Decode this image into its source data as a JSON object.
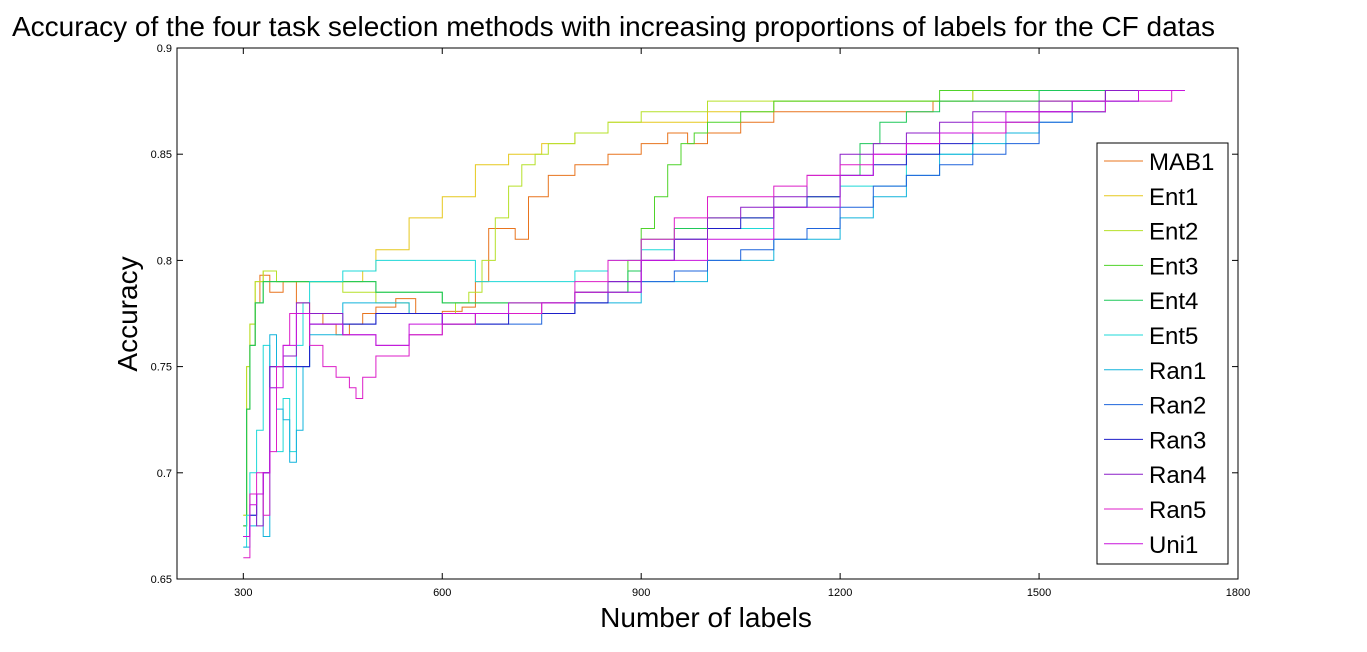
{
  "chart_data": {
    "type": "line",
    "title": "Accuracy of the four task selection methods with increasing proportions of labels for the CF datas",
    "xlabel": "Number of labels",
    "ylabel": "Accuracy",
    "xlim": [
      200,
      1800
    ],
    "ylim": [
      0.65,
      0.9
    ],
    "xticks": [
      300,
      600,
      900,
      1200,
      1500,
      1800
    ],
    "xtick_labels": [
      "300",
      "600",
      "900",
      "1200",
      "1500",
      "1800"
    ],
    "yticks": [
      0.65,
      0.7,
      0.75,
      0.8,
      0.85,
      0.9
    ],
    "ytick_labels": [
      "0.65",
      "0.7",
      "0.75",
      "0.8",
      "0.85",
      "0.9"
    ],
    "grid": false,
    "legend_position": "right",
    "series": [
      {
        "name": "MAB1",
        "color": "#e8741e",
        "x": [
          300,
          305,
          310,
          318,
          325,
          340,
          360,
          380,
          400,
          420,
          440,
          460,
          480,
          500,
          530,
          560,
          600,
          630,
          650,
          670,
          690,
          710,
          730,
          760,
          800,
          850,
          900,
          940,
          970,
          1000,
          1050,
          1100,
          1200,
          1300,
          1340,
          1400,
          1500,
          1600,
          1650
        ],
        "y": [
          0.675,
          0.73,
          0.76,
          0.78,
          0.793,
          0.785,
          0.79,
          0.78,
          0.775,
          0.77,
          0.765,
          0.77,
          0.775,
          0.778,
          0.782,
          0.775,
          0.776,
          0.778,
          0.79,
          0.815,
          0.815,
          0.81,
          0.83,
          0.84,
          0.845,
          0.85,
          0.855,
          0.86,
          0.855,
          0.86,
          0.865,
          0.87,
          0.87,
          0.87,
          0.875,
          0.875,
          0.875,
          0.88,
          0.88
        ]
      },
      {
        "name": "Ent1",
        "color": "#e6c81e",
        "x": [
          300,
          305,
          310,
          318,
          330,
          350,
          400,
          450,
          480,
          500,
          550,
          600,
          650,
          700,
          750,
          800,
          850,
          900,
          950,
          1000,
          1100,
          1200,
          1300,
          1400,
          1500,
          1600
        ],
        "y": [
          0.68,
          0.75,
          0.77,
          0.79,
          0.795,
          0.79,
          0.79,
          0.79,
          0.795,
          0.805,
          0.82,
          0.83,
          0.845,
          0.85,
          0.855,
          0.86,
          0.865,
          0.865,
          0.865,
          0.87,
          0.875,
          0.875,
          0.875,
          0.88,
          0.88,
          0.88
        ]
      },
      {
        "name": "Ent2",
        "color": "#b6e02a",
        "x": [
          300,
          305,
          310,
          318,
          330,
          350,
          400,
          450,
          500,
          550,
          600,
          620,
          640,
          660,
          680,
          700,
          720,
          740,
          760,
          800,
          850,
          900,
          950,
          1000,
          1100,
          1200,
          1300,
          1400,
          1500,
          1600
        ],
        "y": [
          0.68,
          0.75,
          0.77,
          0.79,
          0.795,
          0.79,
          0.79,
          0.785,
          0.78,
          0.775,
          0.775,
          0.78,
          0.785,
          0.8,
          0.82,
          0.835,
          0.845,
          0.85,
          0.855,
          0.86,
          0.865,
          0.87,
          0.87,
          0.875,
          0.875,
          0.875,
          0.875,
          0.88,
          0.88,
          0.88
        ]
      },
      {
        "name": "Ent3",
        "color": "#4fd32a",
        "x": [
          300,
          305,
          310,
          318,
          330,
          400,
          500,
          600,
          700,
          800,
          880,
          900,
          920,
          940,
          960,
          980,
          1000,
          1050,
          1100,
          1200,
          1250,
          1300,
          1350,
          1400,
          1500,
          1600
        ],
        "y": [
          0.675,
          0.73,
          0.76,
          0.78,
          0.79,
          0.79,
          0.785,
          0.78,
          0.78,
          0.785,
          0.8,
          0.815,
          0.83,
          0.845,
          0.855,
          0.86,
          0.865,
          0.87,
          0.875,
          0.875,
          0.875,
          0.875,
          0.88,
          0.88,
          0.88,
          0.88
        ]
      },
      {
        "name": "Ent4",
        "color": "#1ec85a",
        "x": [
          300,
          305,
          310,
          318,
          330,
          400,
          500,
          600,
          700,
          800,
          880,
          900,
          950,
          1000,
          1100,
          1150,
          1200,
          1230,
          1260,
          1300,
          1350,
          1400,
          1500,
          1600
        ],
        "y": [
          0.675,
          0.73,
          0.76,
          0.78,
          0.79,
          0.79,
          0.785,
          0.78,
          0.78,
          0.785,
          0.795,
          0.81,
          0.815,
          0.82,
          0.825,
          0.83,
          0.84,
          0.855,
          0.865,
          0.87,
          0.875,
          0.875,
          0.88,
          0.88
        ]
      },
      {
        "name": "Ent5",
        "color": "#1ed8d8",
        "x": [
          300,
          305,
          310,
          320,
          330,
          340,
          350,
          360,
          370,
          380,
          390,
          400,
          450,
          500,
          550,
          600,
          650,
          700,
          800,
          850,
          900,
          950,
          1000,
          1100,
          1200,
          1300,
          1400,
          1500,
          1600,
          1650
        ],
        "y": [
          0.665,
          0.68,
          0.7,
          0.72,
          0.76,
          0.74,
          0.71,
          0.735,
          0.71,
          0.76,
          0.78,
          0.79,
          0.795,
          0.8,
          0.8,
          0.8,
          0.79,
          0.79,
          0.795,
          0.8,
          0.805,
          0.81,
          0.815,
          0.825,
          0.835,
          0.85,
          0.86,
          0.87,
          0.875,
          0.88
        ]
      },
      {
        "name": "Ran1",
        "color": "#12b4dc",
        "x": [
          300,
          310,
          320,
          330,
          340,
          350,
          360,
          370,
          380,
          390,
          400,
          450,
          500,
          550,
          600,
          650,
          700,
          800,
          900,
          1000,
          1100,
          1200,
          1250,
          1300,
          1350,
          1400,
          1450,
          1500,
          1550,
          1600,
          1650
        ],
        "y": [
          0.665,
          0.675,
          0.69,
          0.67,
          0.765,
          0.73,
          0.725,
          0.705,
          0.72,
          0.75,
          0.765,
          0.78,
          0.78,
          0.775,
          0.77,
          0.775,
          0.775,
          0.78,
          0.79,
          0.8,
          0.81,
          0.82,
          0.83,
          0.84,
          0.85,
          0.855,
          0.86,
          0.865,
          0.87,
          0.875,
          0.88
        ]
      },
      {
        "name": "Ran2",
        "color": "#1e64dc",
        "x": [
          300,
          310,
          320,
          330,
          340,
          400,
          500,
          600,
          700,
          750,
          800,
          850,
          900,
          950,
          1000,
          1050,
          1100,
          1150,
          1200,
          1250,
          1300,
          1350,
          1400,
          1450,
          1500,
          1550,
          1600,
          1650
        ],
        "y": [
          0.67,
          0.68,
          0.69,
          0.7,
          0.75,
          0.77,
          0.775,
          0.77,
          0.77,
          0.775,
          0.78,
          0.785,
          0.79,
          0.795,
          0.8,
          0.805,
          0.81,
          0.815,
          0.825,
          0.835,
          0.84,
          0.845,
          0.85,
          0.855,
          0.865,
          0.87,
          0.875,
          0.88
        ]
      },
      {
        "name": "Ran3",
        "color": "#1e1ec8",
        "x": [
          300,
          310,
          320,
          330,
          340,
          400,
          500,
          600,
          700,
          800,
          850,
          900,
          950,
          1000,
          1050,
          1100,
          1150,
          1200,
          1250,
          1300,
          1350,
          1400,
          1450,
          1500,
          1550,
          1600,
          1650
        ],
        "y": [
          0.67,
          0.68,
          0.69,
          0.7,
          0.75,
          0.77,
          0.775,
          0.77,
          0.775,
          0.78,
          0.79,
          0.8,
          0.81,
          0.815,
          0.82,
          0.825,
          0.83,
          0.84,
          0.845,
          0.85,
          0.855,
          0.86,
          0.865,
          0.87,
          0.875,
          0.88,
          0.88
        ]
      },
      {
        "name": "Ran4",
        "color": "#8c1ec8",
        "x": [
          300,
          310,
          320,
          330,
          340,
          360,
          380,
          400,
          450,
          500,
          550,
          600,
          650,
          700,
          750,
          800,
          850,
          900,
          950,
          1000,
          1050,
          1100,
          1150,
          1200,
          1250,
          1300,
          1350,
          1400,
          1450,
          1500,
          1550,
          1600,
          1650
        ],
        "y": [
          0.67,
          0.69,
          0.675,
          0.7,
          0.75,
          0.755,
          0.78,
          0.775,
          0.765,
          0.76,
          0.765,
          0.77,
          0.775,
          0.775,
          0.78,
          0.785,
          0.79,
          0.8,
          0.81,
          0.82,
          0.825,
          0.83,
          0.84,
          0.85,
          0.855,
          0.86,
          0.865,
          0.87,
          0.87,
          0.875,
          0.875,
          0.88,
          0.88
        ]
      },
      {
        "name": "Ran5",
        "color": "#dc1ec8",
        "x": [
          300,
          310,
          320,
          330,
          340,
          350,
          360,
          370,
          380,
          400,
          420,
          440,
          460,
          470,
          480,
          500,
          550,
          600,
          650,
          700,
          750,
          800,
          850,
          900,
          950,
          1000,
          1050,
          1100,
          1150,
          1200,
          1250,
          1300,
          1350,
          1400,
          1450,
          1500,
          1550,
          1600,
          1650,
          1700,
          1720
        ],
        "y": [
          0.66,
          0.69,
          0.7,
          0.68,
          0.71,
          0.75,
          0.76,
          0.775,
          0.775,
          0.76,
          0.75,
          0.745,
          0.74,
          0.735,
          0.745,
          0.755,
          0.765,
          0.77,
          0.775,
          0.775,
          0.78,
          0.79,
          0.8,
          0.81,
          0.82,
          0.83,
          0.83,
          0.835,
          0.84,
          0.845,
          0.85,
          0.855,
          0.86,
          0.86,
          0.865,
          0.87,
          0.87,
          0.875,
          0.875,
          0.88,
          0.88
        ]
      },
      {
        "name": "Uni1",
        "color": "#c814dc",
        "x": [
          300,
          310,
          320,
          330,
          340,
          360,
          380,
          400,
          450,
          500,
          550,
          600,
          650,
          700,
          800,
          900,
          1000,
          1100,
          1200,
          1250,
          1300,
          1350,
          1400,
          1450,
          1500,
          1550,
          1600,
          1650,
          1700,
          1720
        ],
        "y": [
          0.67,
          0.685,
          0.69,
          0.7,
          0.74,
          0.76,
          0.775,
          0.77,
          0.765,
          0.76,
          0.77,
          0.775,
          0.775,
          0.78,
          0.785,
          0.8,
          0.81,
          0.825,
          0.84,
          0.85,
          0.855,
          0.86,
          0.865,
          0.87,
          0.87,
          0.875,
          0.875,
          0.88,
          0.88,
          0.88
        ]
      }
    ]
  }
}
